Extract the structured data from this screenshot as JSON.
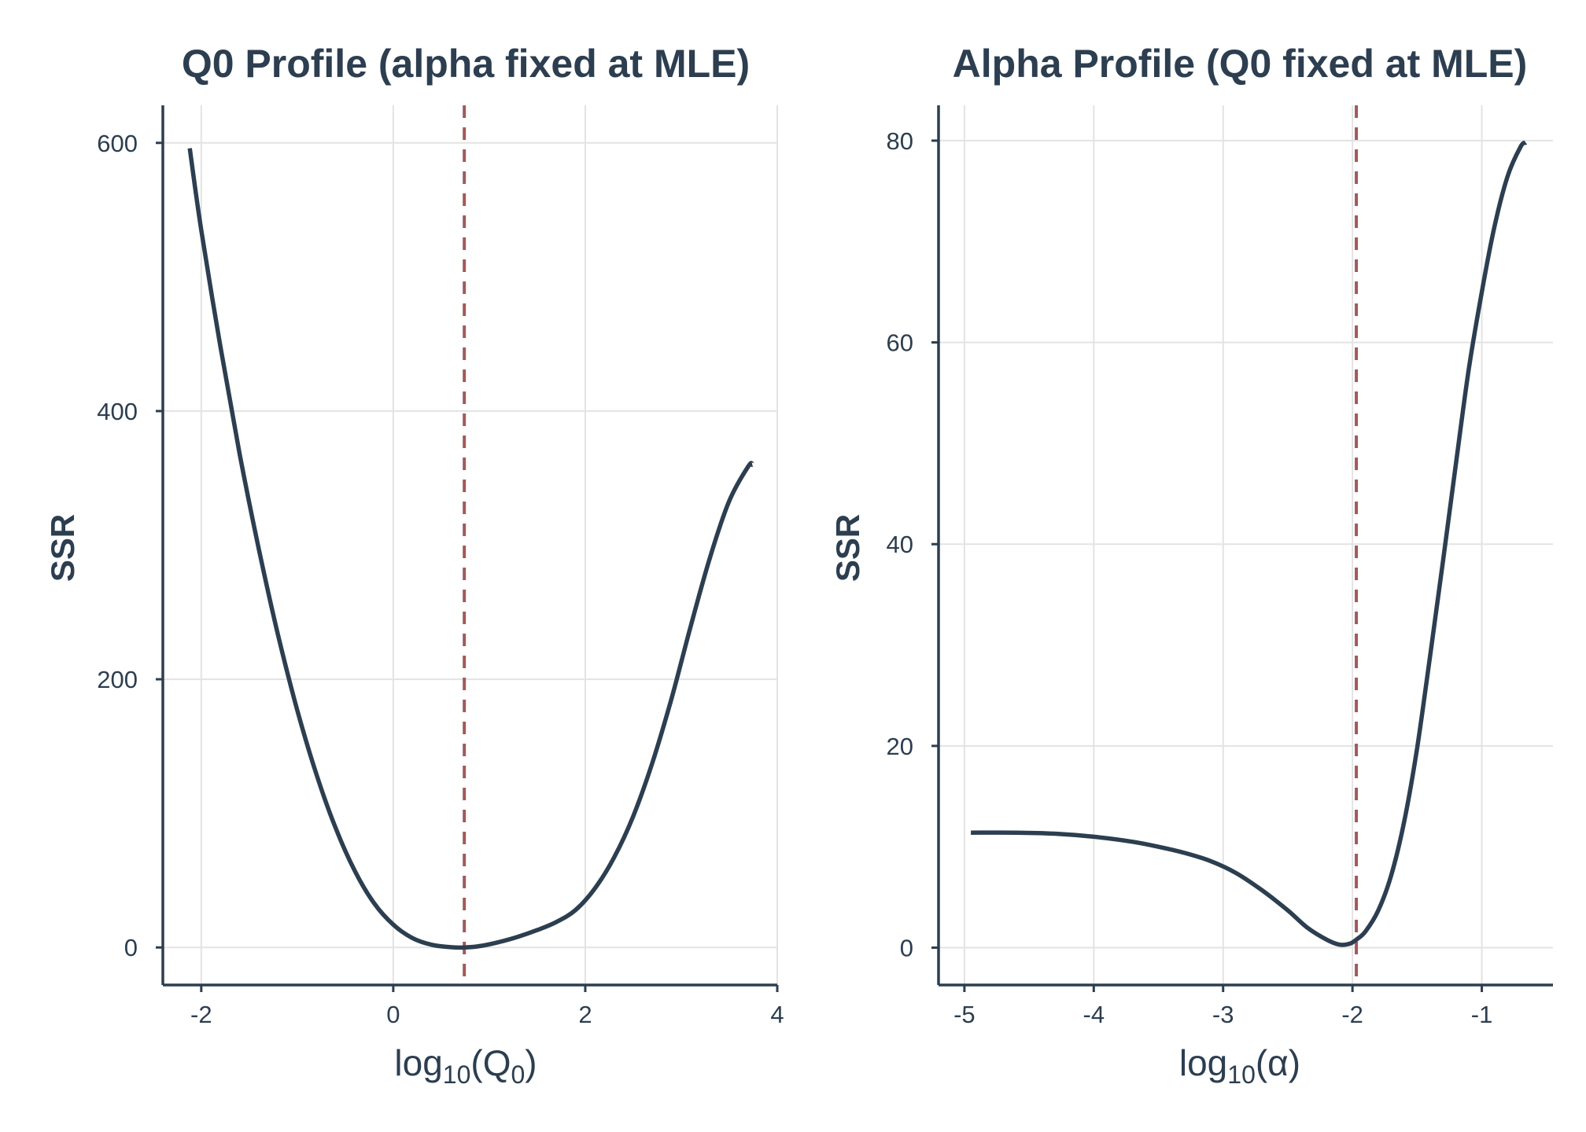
{
  "chart_data": [
    {
      "type": "line",
      "title": "Q0 Profile (alpha fixed at MLE)",
      "ylabel": "SSR",
      "xlabel": {
        "base": "log",
        "sub": "10",
        "open": "(Q",
        "inner_sub": "0",
        "close": ")"
      },
      "xlim": [
        -2.4,
        4.0
      ],
      "ylim": [
        -28,
        628
      ],
      "xticks": [
        -2,
        0,
        2,
        4
      ],
      "xtick_labels": [
        "-2",
        "0",
        "2",
        "4"
      ],
      "yticks": [
        0,
        200,
        400,
        600
      ],
      "ytick_labels": [
        "0",
        "200",
        "400",
        "600"
      ],
      "grid": true,
      "mle_x": 0.74,
      "series": [
        {
          "x": [
            -2.12,
            -2.0,
            -1.8,
            -1.6,
            -1.4,
            -1.2,
            -1.0,
            -0.8,
            -0.6,
            -0.4,
            -0.2,
            0.0,
            0.2,
            0.4,
            0.6,
            0.74,
            0.9,
            1.1,
            1.3,
            1.5,
            1.7,
            1.9,
            2.1,
            2.3,
            2.5,
            2.7,
            2.9,
            3.1,
            3.3,
            3.5,
            3.7,
            3.74
          ],
          "y": [
            596,
            535,
            448,
            368,
            297,
            233,
            177,
            129,
            89,
            57,
            33,
            17,
            7,
            2,
            0.2,
            0,
            1,
            4,
            8,
            13,
            19,
            28,
            44,
            67,
            98,
            138,
            186,
            240,
            291,
            333,
            359,
            360
          ]
        }
      ]
    },
    {
      "type": "line",
      "title": "Alpha Profile (Q0 fixed at MLE)",
      "ylabel": "SSR",
      "xlabel": {
        "base": "log",
        "sub": "10",
        "open": "(α",
        "close": ")"
      },
      "xlim": [
        -5.2,
        -0.45
      ],
      "ylim": [
        -3.7,
        83.5
      ],
      "xticks": [
        -5,
        -4,
        -3,
        -2,
        -1
      ],
      "xtick_labels": [
        "-5",
        "-4",
        "-3",
        "-2",
        "-1"
      ],
      "yticks": [
        0,
        20,
        40,
        60,
        80
      ],
      "ytick_labels": [
        "0",
        "20",
        "40",
        "60",
        "80"
      ],
      "grid": true,
      "mle_x": -1.97,
      "series": [
        {
          "x": [
            -4.95,
            -4.6,
            -4.3,
            -4.0,
            -3.7,
            -3.5,
            -3.3,
            -3.1,
            -2.9,
            -2.7,
            -2.5,
            -2.35,
            -2.2,
            -2.1,
            -2.02,
            -1.97,
            -1.9,
            -1.8,
            -1.7,
            -1.6,
            -1.5,
            -1.4,
            -1.3,
            -1.2,
            -1.1,
            -1.0,
            -0.9,
            -0.8,
            -0.7,
            -0.66
          ],
          "y": [
            11.4,
            11.4,
            11.3,
            11.0,
            10.5,
            10.0,
            9.4,
            8.6,
            7.4,
            5.7,
            3.7,
            2.0,
            0.8,
            0.3,
            0.4,
            0.8,
            1.6,
            3.7,
            7.2,
            12.5,
            19.8,
            28.9,
            38.3,
            48.0,
            57.4,
            65.0,
            71.6,
            76.5,
            79.4,
            79.8
          ]
        }
      ]
    }
  ]
}
